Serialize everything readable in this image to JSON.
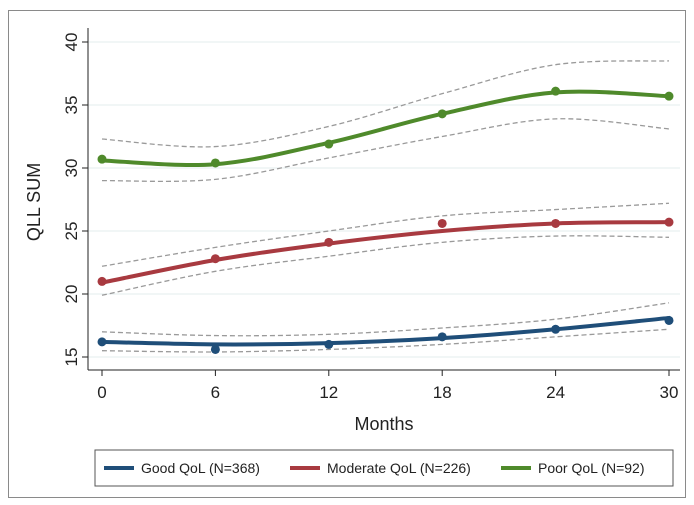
{
  "chart_data": {
    "type": "line",
    "title": "",
    "xlabel": "Months",
    "ylabel": "QLL SUM",
    "x": [
      0,
      6,
      12,
      18,
      24,
      30
    ],
    "xticks": [
      "0",
      "6",
      "12",
      "18",
      "24",
      "30"
    ],
    "yticks": [
      "15",
      "20",
      "25",
      "30",
      "35",
      "40"
    ],
    "xlim": [
      0,
      30
    ],
    "ylim": [
      15,
      40
    ],
    "grid": "horizontal",
    "legend_position": "bottom",
    "series": [
      {
        "name": "Good QoL (N=368)",
        "color": "#1f4e79",
        "observed": [
          16.2,
          15.6,
          16.0,
          16.6,
          17.2,
          17.9
        ],
        "fitted": [
          16.2,
          16.0,
          16.1,
          16.5,
          17.2,
          18.1
        ],
        "ci_lower": [
          15.5,
          15.4,
          15.6,
          16.0,
          16.6,
          17.2
        ],
        "ci_upper": [
          17.0,
          16.7,
          16.8,
          17.3,
          18.0,
          19.3
        ]
      },
      {
        "name": "Moderate QoL (N=226)",
        "color": "#a83a40",
        "observed": [
          21.0,
          22.8,
          24.1,
          25.6,
          25.6,
          25.7
        ],
        "fitted": [
          20.9,
          22.7,
          24.0,
          25.0,
          25.6,
          25.7
        ],
        "ci_lower": [
          19.9,
          21.8,
          23.0,
          24.1,
          24.6,
          24.5
        ],
        "ci_upper": [
          22.2,
          23.7,
          25.0,
          26.2,
          26.7,
          27.2
        ]
      },
      {
        "name": "Poor QoL (N=92)",
        "color": "#4f8a2b",
        "observed": [
          30.7,
          30.4,
          31.9,
          34.3,
          36.1,
          35.7
        ],
        "fitted": [
          30.6,
          30.3,
          32.0,
          34.3,
          36.0,
          35.7
        ],
        "ci_lower": [
          29.0,
          29.1,
          30.8,
          32.5,
          33.9,
          33.1
        ],
        "ci_upper": [
          32.3,
          31.7,
          33.3,
          35.9,
          38.2,
          38.5
        ]
      }
    ]
  }
}
